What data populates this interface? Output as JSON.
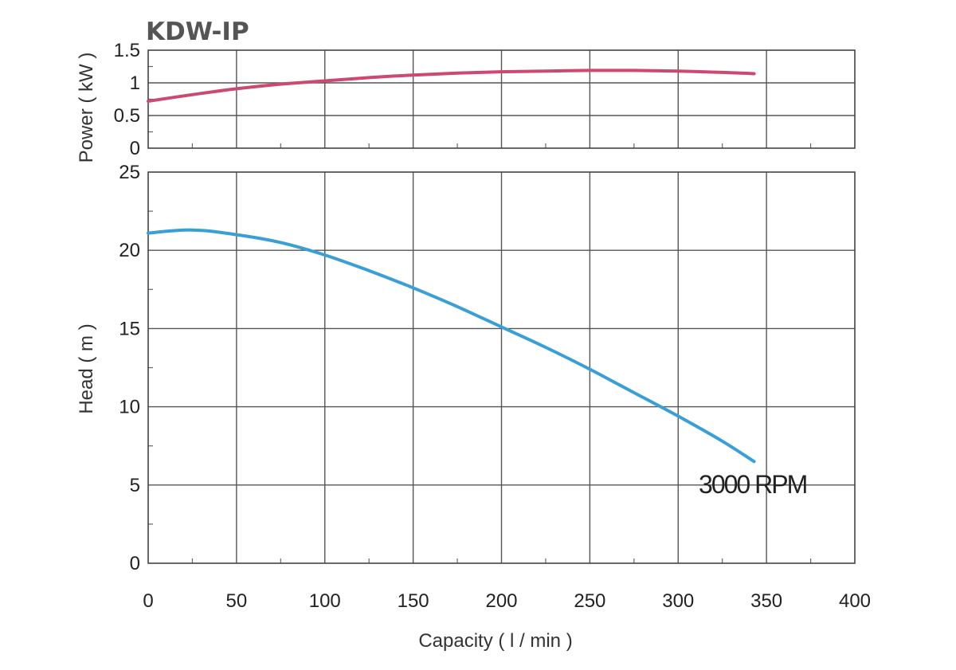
{
  "chart_data": [
    {
      "type": "line",
      "title": "KDW-IP",
      "ylabel": "Power ( kW )",
      "xlim": [
        0,
        400
      ],
      "ylim": [
        0,
        1.5
      ],
      "yticks": [
        0,
        0.5,
        1,
        1.5
      ],
      "ytick_labels": [
        "0",
        "0.5",
        "1",
        "1.5"
      ],
      "grid": true,
      "series": [
        {
          "color": "#cc4a72",
          "x": [
            0,
            25,
            50,
            75,
            100,
            125,
            150,
            175,
            200,
            225,
            250,
            275,
            300,
            325,
            343
          ],
          "y": [
            0.72,
            0.82,
            0.91,
            0.98,
            1.03,
            1.08,
            1.12,
            1.15,
            1.17,
            1.18,
            1.19,
            1.19,
            1.18,
            1.16,
            1.14
          ]
        }
      ]
    },
    {
      "type": "line",
      "xlabel": "Capacity ( l / min )",
      "ylabel": "Head ( m )",
      "xlim": [
        0,
        400
      ],
      "ylim": [
        0,
        25
      ],
      "xticks": [
        0,
        50,
        100,
        150,
        200,
        250,
        300,
        350,
        400
      ],
      "xtick_labels": [
        "0",
        "50",
        "100",
        "150",
        "200",
        "250",
        "300",
        "350",
        "400"
      ],
      "yticks": [
        0,
        5,
        10,
        15,
        20,
        25
      ],
      "ytick_labels": [
        "0",
        "5",
        "10",
        "15",
        "20",
        "25"
      ],
      "grid": true,
      "annotations": [
        {
          "text": "3000 RPM",
          "x": 345,
          "y": 5.1
        }
      ],
      "series": [
        {
          "color": "#3a9fd4",
          "x": [
            0,
            25,
            50,
            75,
            100,
            125,
            150,
            175,
            200,
            225,
            250,
            275,
            300,
            325,
            343
          ],
          "y": [
            21.1,
            21.3,
            21.0,
            20.5,
            19.7,
            18.7,
            17.6,
            16.4,
            15.1,
            13.8,
            12.4,
            10.9,
            9.4,
            7.8,
            6.5
          ]
        }
      ]
    }
  ]
}
